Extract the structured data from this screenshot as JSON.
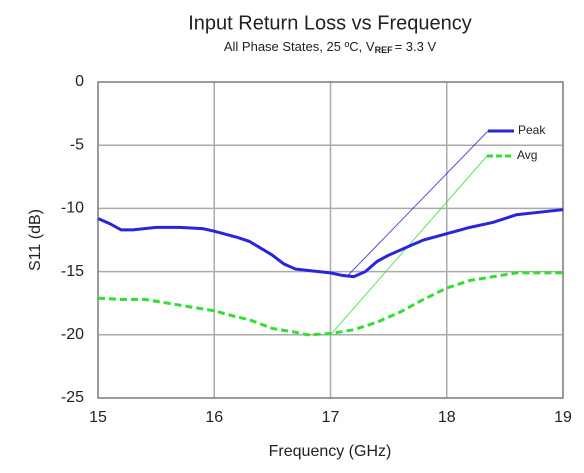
{
  "chart_data": {
    "type": "line",
    "title": "Input Return Loss vs Frequency",
    "subtitle": [
      "All Phase States, 25 ºC, V",
      "REF",
      "= 3.3 V"
    ],
    "x_label": "Frequency (GHz)",
    "y_label": "S11 (dB)",
    "xlim": [
      15,
      19
    ],
    "xticks": [
      15,
      16,
      17,
      18,
      19
    ],
    "ylim": [
      -25,
      0
    ],
    "yticks": [
      -25,
      -20,
      -15,
      -10,
      -5,
      0
    ],
    "grid": true,
    "series": [
      {
        "name": "Peak",
        "color": "#2626dd",
        "dash": "solid",
        "x": [
          15.0,
          15.1,
          15.2,
          15.3,
          15.5,
          15.7,
          15.9,
          16.0,
          16.2,
          16.3,
          16.5,
          16.6,
          16.7,
          16.9,
          17.0,
          17.1,
          17.2,
          17.3,
          17.4,
          17.5,
          17.7,
          17.8,
          18.0,
          18.2,
          18.4,
          18.6,
          18.8,
          19.0
        ],
        "values": [
          -10.8,
          -11.2,
          -11.7,
          -11.7,
          -11.5,
          -11.5,
          -11.6,
          -11.8,
          -12.3,
          -12.6,
          -13.7,
          -14.4,
          -14.8,
          -15.0,
          -15.1,
          -15.3,
          -15.4,
          -15.0,
          -14.2,
          -13.7,
          -12.9,
          -12.5,
          -12.0,
          -11.5,
          -11.1,
          -10.5,
          -10.3,
          -10.1
        ]
      },
      {
        "name": "Avg",
        "color": "#33dd33",
        "dash": "dashed",
        "x": [
          15.0,
          15.2,
          15.4,
          15.6,
          15.8,
          16.0,
          16.2,
          16.3,
          16.5,
          16.7,
          16.8,
          17.0,
          17.2,
          17.4,
          17.6,
          17.8,
          18.0,
          18.2,
          18.4,
          18.6,
          18.8,
          19.0
        ],
        "values": [
          -17.1,
          -17.2,
          -17.2,
          -17.5,
          -17.8,
          -18.1,
          -18.6,
          -18.8,
          -19.5,
          -19.8,
          -20.0,
          -19.9,
          -19.6,
          -19.0,
          -18.2,
          -17.2,
          -16.3,
          -15.7,
          -15.4,
          -15.1,
          -15.1,
          -15.1
        ]
      }
    ]
  }
}
